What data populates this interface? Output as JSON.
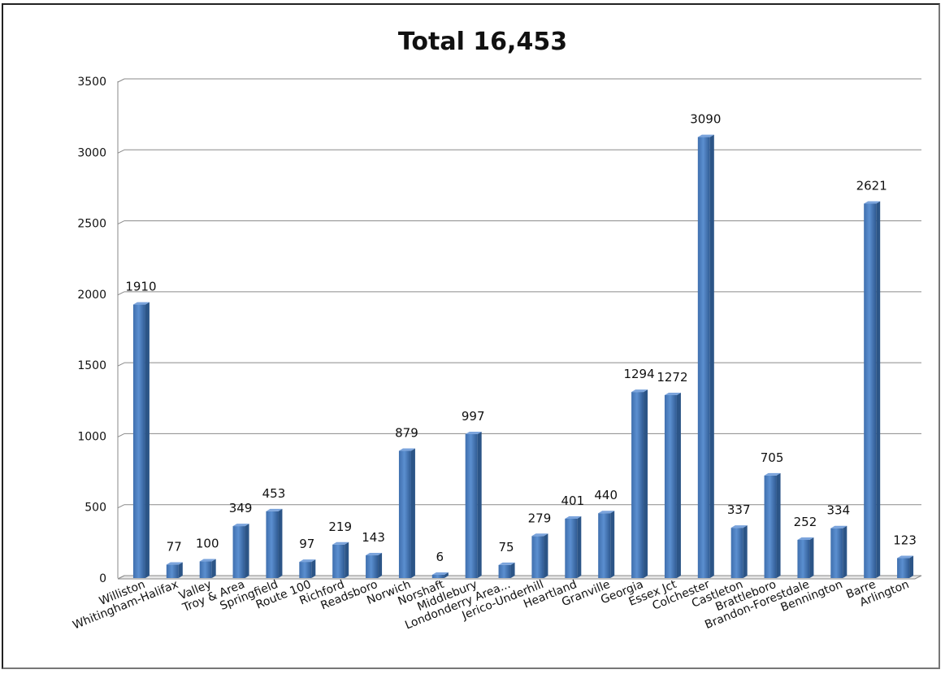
{
  "chart_data": {
    "type": "bar",
    "title": "Total 16,453",
    "xlabel": "",
    "ylabel": "",
    "ylim": [
      0,
      3500
    ],
    "yticks": [
      "0",
      "500",
      "1000",
      "1500",
      "2000",
      "2500",
      "3000",
      "3500"
    ],
    "grid": true,
    "categories": [
      "Williston",
      "Whitingham-Halifax",
      "Valley",
      "Troy & Area",
      "Springfield",
      "Route 100",
      "Richford",
      "Readsboro",
      "Norwich",
      "Norshaft",
      "Middlebury",
      "Londonderry Area...",
      "Jerico-Underhill",
      "Heartland",
      "Granville",
      "Georgia",
      "Essex Jct",
      "Colchester",
      "Castleton",
      "Brattleboro",
      "Brandon-Forestdale",
      "Bennington",
      "Barre",
      "Arlington"
    ],
    "values": [
      1910,
      77,
      100,
      349,
      453,
      97,
      219,
      143,
      879,
      6,
      997,
      75,
      279,
      401,
      440,
      1294,
      1272,
      3090,
      337,
      705,
      252,
      334,
      2621,
      123
    ],
    "data_labels": [
      "1910",
      "77",
      "100",
      "349",
      "453",
      "97",
      "219",
      "143",
      "879",
      "6",
      "997",
      "75",
      "279",
      "401",
      "440",
      "1294",
      "1272",
      "3090",
      "337",
      "705",
      "252",
      "334",
      "2621",
      "123"
    ],
    "bar_color": "#4f81bd"
  }
}
